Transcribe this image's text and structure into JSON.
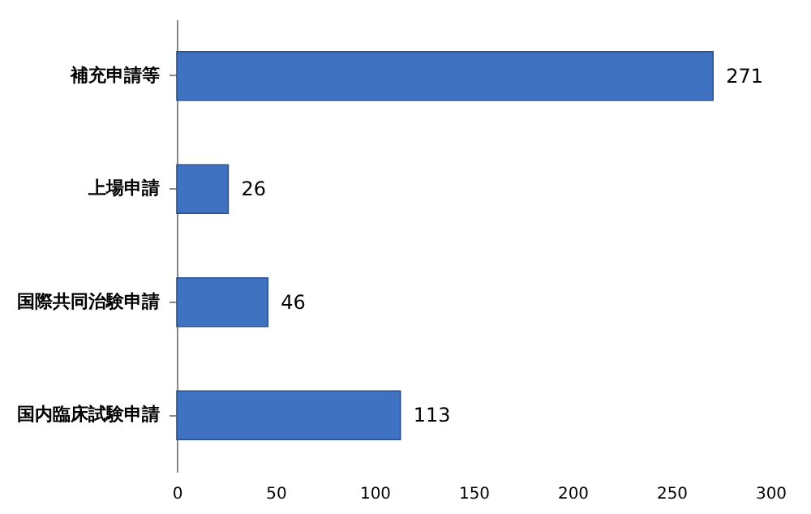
{
  "chart_data": {
    "type": "bar",
    "orientation": "horizontal",
    "categories": [
      "補充申請等",
      "上場申請",
      "国際共同治験申請",
      "国内臨床試験申請"
    ],
    "values": [
      271,
      26,
      46,
      113
    ],
    "color": "#3f72c0",
    "xlim": [
      0,
      300
    ],
    "xticks": [
      0,
      50,
      100,
      150,
      200,
      250,
      300
    ],
    "data_labels": true,
    "grid": false
  }
}
